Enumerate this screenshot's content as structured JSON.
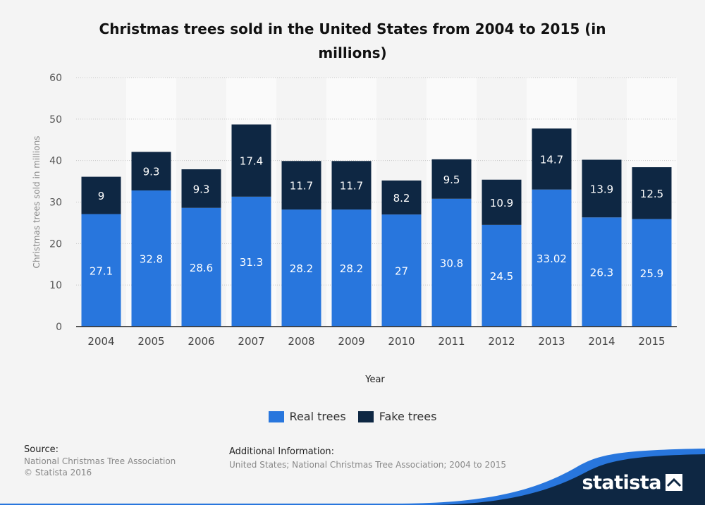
{
  "chart_data": {
    "type": "bar",
    "stacked": true,
    "title": "Christmas trees sold in the United States from 2004 to 2015 (in millions)",
    "xlabel": "Year",
    "ylabel": "Christmas trees sold in millions",
    "ylim": [
      0,
      60
    ],
    "yticks": [
      0,
      10,
      20,
      30,
      40,
      50,
      60
    ],
    "grid": true,
    "legend_position": "bottom",
    "categories": [
      "2004",
      "2005",
      "2006",
      "2007",
      "2008",
      "2009",
      "2010",
      "2011",
      "2012",
      "2013",
      "2014",
      "2015"
    ],
    "series": [
      {
        "name": "Real trees",
        "color": "#2876dd",
        "values": [
          27.1,
          32.8,
          28.6,
          31.3,
          28.2,
          28.2,
          27,
          30.8,
          24.5,
          33.02,
          26.3,
          25.9
        ],
        "labels": [
          "27.1",
          "32.8",
          "28.6",
          "31.3",
          "28.2",
          "28.2",
          "27",
          "30.8",
          "24.5",
          "33.02",
          "26.3",
          "25.9"
        ]
      },
      {
        "name": "Fake trees",
        "color": "#0e2743",
        "values": [
          9,
          9.3,
          9.3,
          17.4,
          11.7,
          11.7,
          8.2,
          9.5,
          10.9,
          14.7,
          13.9,
          12.5
        ],
        "labels": [
          "9",
          "9.3",
          "9.3",
          "17.4",
          "11.7",
          "11.7",
          "8.2",
          "9.5",
          "10.9",
          "14.7",
          "13.9",
          "12.5"
        ]
      }
    ]
  },
  "footer": {
    "source_heading": "Source:",
    "source_line1": "National Christmas Tree Association",
    "source_line2": "© Statista 2016",
    "info_heading": "Additional Information:",
    "info_text": "United States; National Christmas Tree Association; 2004 to 2015"
  },
  "brand": {
    "name": "statista",
    "color": "#0e2743",
    "accent": "#2876dd"
  }
}
